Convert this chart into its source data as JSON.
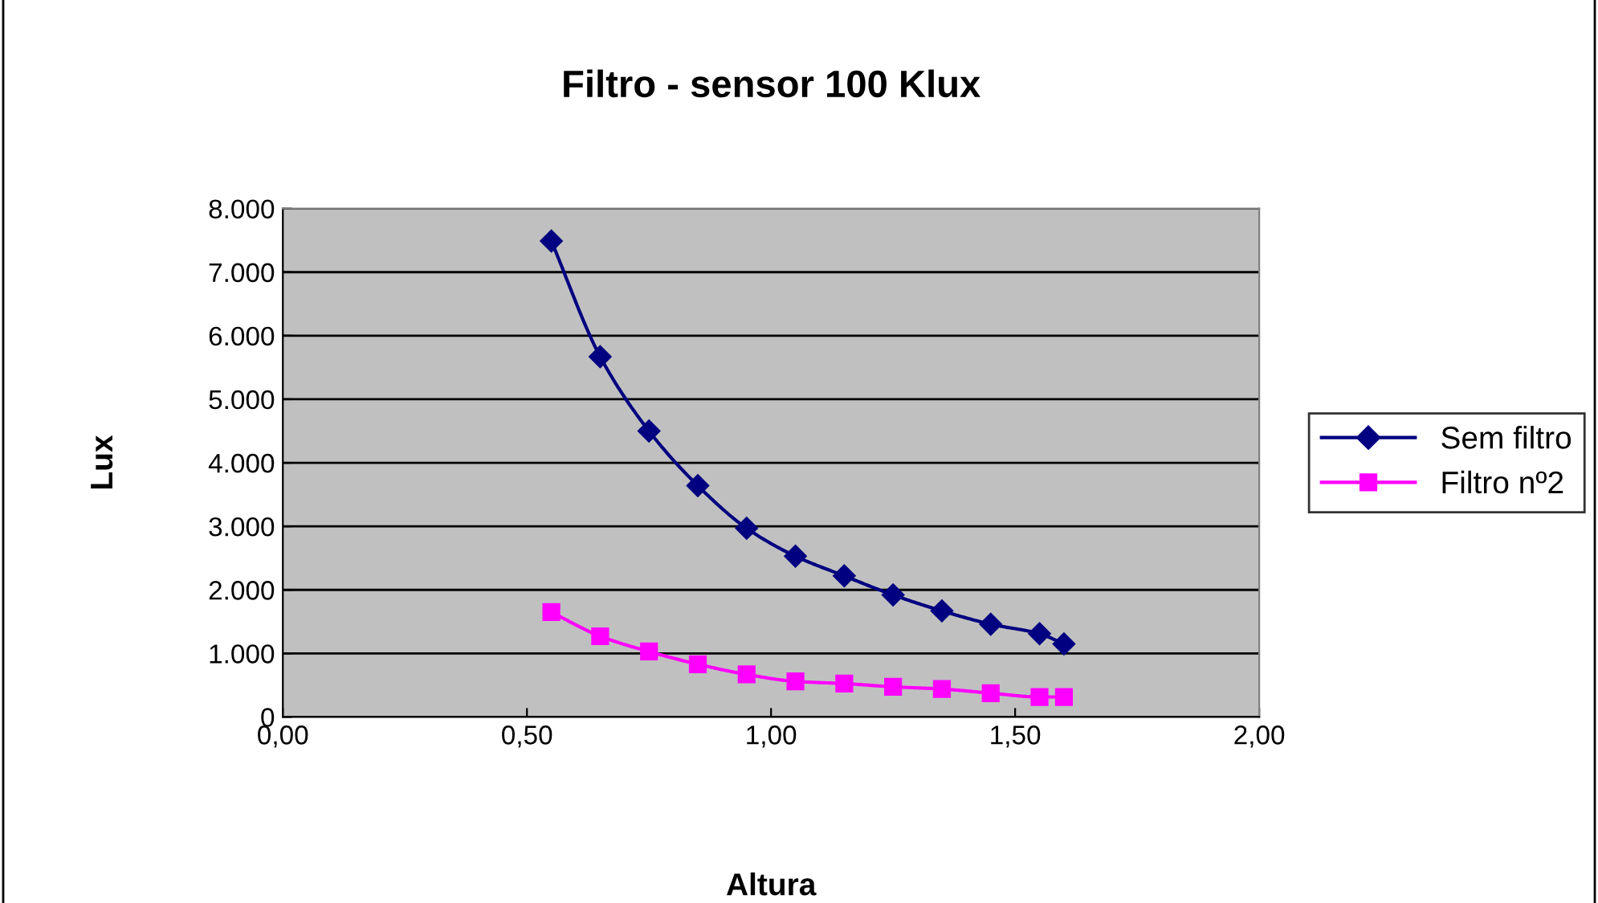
{
  "chart_data": {
    "type": "line",
    "title": "Filtro - sensor 100 Klux",
    "xlabel": "Altura",
    "ylabel": "Lux",
    "xlim": [
      0,
      2
    ],
    "xticks": [
      {
        "value": 0,
        "label": "0,00"
      },
      {
        "value": 0.5,
        "label": "0,50"
      },
      {
        "value": 1,
        "label": "1,00"
      },
      {
        "value": 1.5,
        "label": "1,50"
      },
      {
        "value": 2,
        "label": "2,00"
      }
    ],
    "ylim": [
      0,
      8000
    ],
    "yticks": [
      0,
      {
        "value": 1000,
        "label": "1.000"
      },
      {
        "value": 2000,
        "label": "2.000"
      },
      {
        "value": 3000,
        "label": "3.000"
      },
      {
        "value": 4000,
        "label": "4.000"
      },
      {
        "value": 5000,
        "label": "5.000"
      },
      {
        "value": 6000,
        "label": "6.000"
      },
      {
        "value": 7000,
        "label": "7.000"
      },
      {
        "value": 8000,
        "label": "8.000"
      }
    ],
    "x": [
      0.55,
      0.65,
      0.75,
      0.85,
      0.95,
      1.05,
      1.15,
      1.25,
      1.35,
      1.45,
      1.55,
      1.6
    ],
    "series": [
      {
        "name": "Sem filtro",
        "color": "#000080",
        "marker": "diamond",
        "values": [
          7490,
          5670,
          4500,
          3640,
          2970,
          2530,
          2220,
          1920,
          1670,
          1460,
          1310,
          1150
        ]
      },
      {
        "name": "Filtro nº2",
        "color": "#ff00ff",
        "marker": "square",
        "values": [
          1650,
          1270,
          1030,
          830,
          670,
          560,
          525,
          475,
          440,
          375,
          315,
          315
        ]
      }
    ],
    "grid": "y",
    "legend": "right"
  }
}
